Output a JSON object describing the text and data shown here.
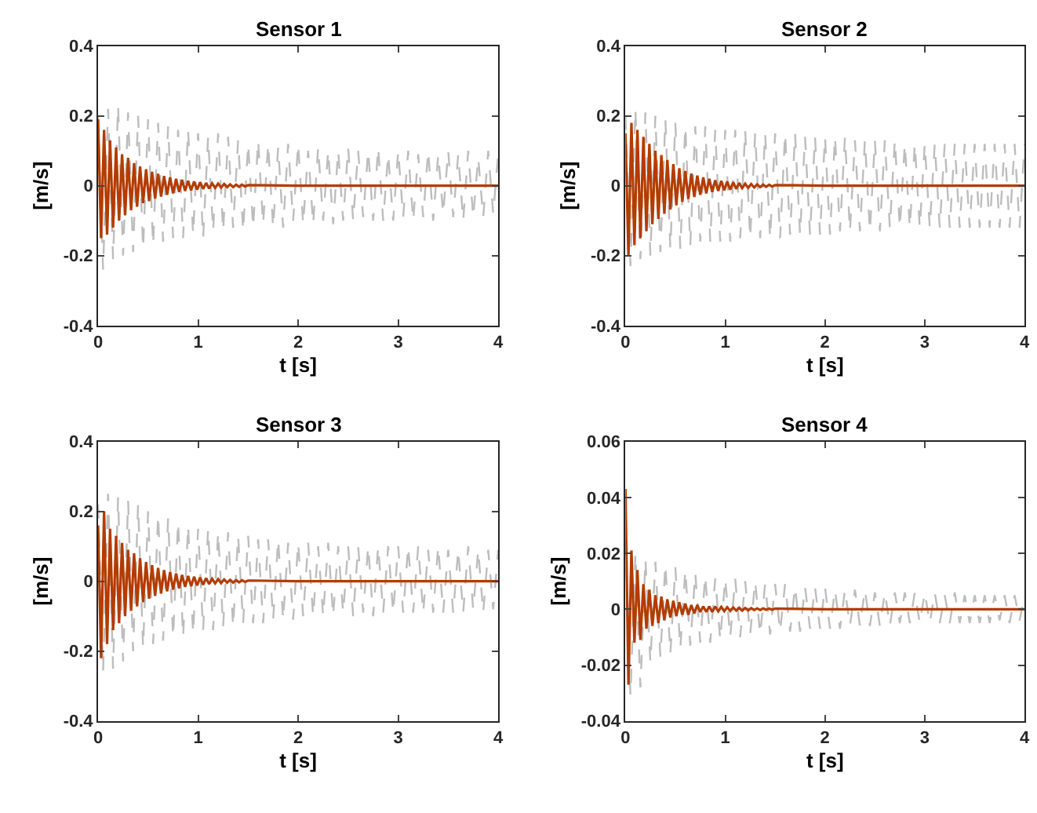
{
  "chart_data": [
    {
      "type": "line",
      "title": "Sensor 1",
      "xlabel": "t [s]",
      "ylabel": "[m/s]",
      "xlim": [
        0,
        4
      ],
      "xticks": [
        0,
        1,
        2,
        3,
        4
      ],
      "ylim": [
        -0.4,
        0.4
      ],
      "yticks": [
        -0.4,
        -0.2,
        0,
        0.2,
        0.4
      ],
      "x": [
        0,
        0.05,
        0.1,
        0.15,
        0.2,
        0.25,
        0.3,
        0.35,
        0.4,
        0.45,
        0.5,
        0.55,
        0.6,
        0.65,
        0.7,
        0.75,
        0.8,
        0.85,
        0.9,
        0.95,
        1,
        1.05,
        1.1,
        1.15,
        1.2,
        1.25,
        1.3,
        1.35,
        1.4,
        1.45,
        1.5,
        1.55,
        1.6,
        1.65,
        1.7,
        1.75,
        1.8,
        1.85,
        1.9,
        1.95,
        2,
        2.05,
        2.1,
        2.15,
        2.2,
        2.25,
        2.3,
        2.35,
        2.4,
        2.45,
        2.5,
        2.55,
        2.6,
        2.65,
        2.7,
        2.75,
        2.8,
        2.85,
        2.9,
        2.95,
        3,
        3.05,
        3.1,
        3.15,
        3.2,
        3.25,
        3.3,
        3.35,
        3.4,
        3.45,
        3.5,
        3.55,
        3.6,
        3.65,
        3.7,
        3.75,
        3.8,
        3.85,
        3.9,
        3.95,
        4
      ],
      "series": [
        {
          "color": "#bdbdbd",
          "line_style": "dashed",
          "values": [
            0.2,
            -0.24,
            0.22,
            -0.21,
            0.23,
            -0.2,
            0.21,
            -0.19,
            0.2,
            -0.18,
            0.19,
            -0.17,
            0.18,
            -0.16,
            0.17,
            -0.15,
            0.16,
            -0.15,
            0.16,
            -0.14,
            0.15,
            -0.15,
            0.14,
            -0.13,
            0.15,
            -0.13,
            0.14,
            -0.12,
            0.13,
            -0.13,
            0.12,
            -0.12,
            0.13,
            -0.11,
            0.12,
            -0.12,
            0.11,
            -0.12,
            0.12,
            -0.1,
            0.12,
            -0.11,
            0.1,
            -0.11,
            0.11,
            -0.1,
            0.1,
            -0.11,
            0.1,
            -0.1,
            0.11,
            -0.1,
            0.1,
            -0.09,
            0.1,
            -0.1,
            0.11,
            -0.1,
            0.09,
            -0.1,
            0.1,
            -0.09,
            0.1,
            -0.1,
            0.09,
            -0.09,
            0.1,
            -0.1,
            0.09,
            -0.08,
            0.1,
            -0.09,
            0.09,
            -0.1,
            0.1,
            -0.09,
            0.08,
            -0.09,
            0.1,
            -0.08,
            0.09
          ]
        },
        {
          "color": "#b33c00",
          "line_style": "solid",
          "x": [
            0,
            0.03,
            0.06,
            0.09,
            0.12,
            0.15,
            0.18,
            0.21,
            0.24,
            0.27,
            0.3,
            0.33,
            0.36,
            0.39,
            0.42,
            0.45,
            0.48,
            0.51,
            0.54,
            0.57,
            0.6,
            0.63,
            0.66,
            0.69,
            0.72,
            0.75,
            0.78,
            0.81,
            0.84,
            0.87,
            0.9,
            0.93,
            0.96,
            0.99,
            1.02,
            1.05,
            1.08,
            1.11,
            1.14,
            1.17,
            1.2,
            1.23,
            1.26,
            1.29,
            1.32,
            1.35,
            1.38,
            1.41,
            1.44,
            1.47,
            1.5,
            2,
            4
          ],
          "values": [
            0.19,
            -0.15,
            0.16,
            -0.14,
            0.13,
            -0.12,
            0.11,
            -0.1,
            0.09,
            -0.085,
            0.08,
            -0.07,
            0.065,
            -0.06,
            0.055,
            -0.05,
            0.047,
            -0.044,
            0.04,
            -0.037,
            0.034,
            -0.031,
            0.028,
            -0.026,
            0.024,
            -0.022,
            0.02,
            -0.018,
            0.017,
            -0.015,
            0.014,
            -0.013,
            0.012,
            -0.011,
            0.01,
            -0.009,
            0.008,
            -0.008,
            0.007,
            -0.006,
            0.006,
            -0.005,
            0.005,
            -0.004,
            0.004,
            -0.004,
            0.003,
            -0.003,
            0.003,
            -0.002,
            0.002,
            0,
            0
          ]
        }
      ]
    },
    {
      "type": "line",
      "title": "Sensor 2",
      "xlabel": "t [s]",
      "ylabel": "[m/s]",
      "xlim": [
        0,
        4
      ],
      "xticks": [
        0,
        1,
        2,
        3,
        4
      ],
      "ylim": [
        -0.4,
        0.4
      ],
      "yticks": [
        -0.4,
        -0.2,
        0,
        0.2,
        0.4
      ],
      "x": [
        0,
        0.05,
        0.1,
        0.15,
        0.2,
        0.25,
        0.3,
        0.35,
        0.4,
        0.45,
        0.5,
        0.55,
        0.6,
        0.65,
        0.7,
        0.75,
        0.8,
        0.85,
        0.9,
        0.95,
        1,
        1.05,
        1.1,
        1.15,
        1.2,
        1.25,
        1.3,
        1.35,
        1.4,
        1.45,
        1.5,
        1.55,
        1.6,
        1.65,
        1.7,
        1.75,
        1.8,
        1.85,
        1.9,
        1.95,
        2,
        2.05,
        2.1,
        2.15,
        2.2,
        2.25,
        2.3,
        2.35,
        2.4,
        2.45,
        2.5,
        2.55,
        2.6,
        2.65,
        2.7,
        2.75,
        2.8,
        2.85,
        2.9,
        2.95,
        3,
        3.05,
        3.1,
        3.15,
        3.2,
        3.25,
        3.3,
        3.35,
        3.4,
        3.45,
        3.5,
        3.55,
        3.6,
        3.65,
        3.7,
        3.75,
        3.8,
        3.85,
        3.9,
        3.95,
        4
      ],
      "series": [
        {
          "color": "#bdbdbd",
          "line_style": "dashed",
          "values": [
            0.2,
            -0.23,
            0.22,
            -0.21,
            0.21,
            -0.2,
            0.2,
            -0.19,
            0.19,
            -0.18,
            0.18,
            -0.18,
            0.17,
            -0.17,
            0.17,
            -0.16,
            0.17,
            -0.16,
            0.16,
            -0.16,
            0.16,
            -0.16,
            0.16,
            -0.15,
            0.16,
            -0.15,
            0.15,
            -0.15,
            0.15,
            -0.15,
            0.15,
            -0.15,
            0.15,
            -0.14,
            0.15,
            -0.14,
            0.14,
            -0.14,
            0.14,
            -0.14,
            0.14,
            -0.14,
            0.14,
            -0.13,
            0.14,
            -0.13,
            0.13,
            -0.13,
            0.13,
            -0.13,
            0.13,
            -0.13,
            0.13,
            -0.12,
            0.13,
            -0.12,
            0.12,
            -0.12,
            0.12,
            -0.12,
            0.12,
            -0.12,
            0.12,
            -0.12,
            0.12,
            -0.12,
            0.12,
            -0.12,
            0.12,
            -0.12,
            0.12,
            -0.12,
            0.12,
            -0.12,
            0.12,
            -0.12,
            0.12,
            -0.12,
            0.12,
            -0.12,
            0.12
          ]
        },
        {
          "color": "#b33c00",
          "line_style": "solid",
          "x": [
            0,
            0.03,
            0.06,
            0.09,
            0.12,
            0.15,
            0.18,
            0.21,
            0.24,
            0.27,
            0.3,
            0.33,
            0.36,
            0.39,
            0.42,
            0.45,
            0.48,
            0.51,
            0.54,
            0.57,
            0.6,
            0.63,
            0.66,
            0.69,
            0.72,
            0.75,
            0.78,
            0.81,
            0.84,
            0.87,
            0.9,
            0.93,
            0.96,
            0.99,
            1.02,
            1.05,
            1.08,
            1.11,
            1.14,
            1.17,
            1.2,
            1.23,
            1.26,
            1.29,
            1.32,
            1.35,
            1.38,
            1.41,
            1.44,
            1.47,
            1.5,
            2,
            4
          ],
          "values": [
            0.15,
            -0.2,
            0.18,
            -0.17,
            0.16,
            -0.15,
            0.14,
            -0.13,
            0.12,
            -0.11,
            0.1,
            -0.095,
            0.088,
            -0.08,
            0.074,
            -0.068,
            0.062,
            -0.056,
            0.05,
            -0.046,
            0.042,
            -0.038,
            0.035,
            -0.032,
            0.029,
            -0.026,
            0.024,
            -0.022,
            0.02,
            -0.018,
            0.016,
            -0.015,
            0.014,
            -0.013,
            0.012,
            -0.011,
            0.01,
            -0.009,
            0.008,
            -0.007,
            0.006,
            -0.006,
            0.005,
            -0.005,
            0.004,
            -0.004,
            0.003,
            -0.003,
            0.003,
            -0.002,
            0.002,
            0,
            0
          ]
        }
      ]
    },
    {
      "type": "line",
      "title": "Sensor 3",
      "xlabel": "t [s]",
      "ylabel": "[m/s]",
      "xlim": [
        0,
        4
      ],
      "xticks": [
        0,
        1,
        2,
        3,
        4
      ],
      "ylim": [
        -0.4,
        0.4
      ],
      "yticks": [
        -0.4,
        -0.2,
        0,
        0.2,
        0.4
      ],
      "x": [
        0,
        0.05,
        0.1,
        0.15,
        0.2,
        0.25,
        0.3,
        0.35,
        0.4,
        0.45,
        0.5,
        0.55,
        0.6,
        0.65,
        0.7,
        0.75,
        0.8,
        0.85,
        0.9,
        0.95,
        1,
        1.05,
        1.1,
        1.15,
        1.2,
        1.25,
        1.3,
        1.35,
        1.4,
        1.45,
        1.5,
        1.55,
        1.6,
        1.65,
        1.7,
        1.75,
        1.8,
        1.85,
        1.9,
        1.95,
        2,
        2.05,
        2.1,
        2.15,
        2.2,
        2.25,
        2.3,
        2.35,
        2.4,
        2.45,
        2.5,
        2.55,
        2.6,
        2.65,
        2.7,
        2.75,
        2.8,
        2.85,
        2.9,
        2.95,
        3,
        3.05,
        3.1,
        3.15,
        3.2,
        3.25,
        3.3,
        3.35,
        3.4,
        3.45,
        3.5,
        3.55,
        3.6,
        3.65,
        3.7,
        3.75,
        3.8,
        3.85,
        3.9,
        3.95,
        4
      ],
      "series": [
        {
          "color": "#bdbdbd",
          "line_style": "dashed",
          "values": [
            0.22,
            -0.26,
            0.25,
            -0.25,
            0.24,
            -0.23,
            0.23,
            -0.2,
            0.22,
            -0.19,
            0.2,
            -0.18,
            0.19,
            -0.17,
            0.18,
            -0.16,
            0.17,
            -0.16,
            0.16,
            -0.15,
            0.15,
            -0.14,
            0.15,
            -0.14,
            0.14,
            -0.13,
            0.14,
            -0.13,
            0.13,
            -0.12,
            0.13,
            -0.12,
            0.12,
            -0.12,
            0.12,
            -0.11,
            0.12,
            -0.11,
            0.11,
            -0.11,
            0.11,
            -0.1,
            0.11,
            -0.1,
            0.1,
            -0.1,
            0.11,
            -0.1,
            0.1,
            -0.09,
            0.1,
            -0.1,
            0.1,
            -0.09,
            0.1,
            -0.1,
            0.1,
            -0.09,
            0.1,
            -0.09,
            0.1,
            -0.09,
            0.1,
            -0.09,
            0.1,
            -0.09,
            0.09,
            -0.09,
            0.1,
            -0.09,
            0.09,
            -0.09,
            0.09,
            -0.09,
            0.1,
            -0.08,
            0.09,
            -0.09,
            0.09,
            -0.08,
            0.09
          ]
        },
        {
          "color": "#b33c00",
          "line_style": "solid",
          "x": [
            0,
            0.03,
            0.06,
            0.09,
            0.12,
            0.15,
            0.18,
            0.21,
            0.24,
            0.27,
            0.3,
            0.33,
            0.36,
            0.39,
            0.42,
            0.45,
            0.48,
            0.51,
            0.54,
            0.57,
            0.6,
            0.63,
            0.66,
            0.69,
            0.72,
            0.75,
            0.78,
            0.81,
            0.84,
            0.87,
            0.9,
            0.93,
            0.96,
            0.99,
            1.02,
            1.05,
            1.08,
            1.11,
            1.14,
            1.17,
            1.2,
            1.23,
            1.26,
            1.29,
            1.32,
            1.35,
            1.38,
            1.41,
            1.44,
            1.47,
            1.5,
            2,
            4
          ],
          "values": [
            0.16,
            -0.22,
            0.2,
            -0.18,
            0.15,
            -0.14,
            0.13,
            -0.12,
            0.11,
            -0.1,
            0.09,
            -0.085,
            0.08,
            -0.072,
            0.066,
            -0.06,
            0.055,
            -0.05,
            0.046,
            -0.042,
            0.038,
            -0.035,
            0.032,
            -0.029,
            0.026,
            -0.024,
            0.022,
            -0.02,
            0.018,
            -0.016,
            0.015,
            -0.014,
            0.013,
            -0.012,
            0.011,
            -0.01,
            0.009,
            -0.008,
            0.007,
            -0.006,
            0.006,
            -0.005,
            0.005,
            -0.004,
            0.004,
            -0.004,
            0.003,
            -0.003,
            0.003,
            -0.002,
            0.002,
            0,
            0
          ]
        }
      ]
    },
    {
      "type": "line",
      "title": "Sensor 4",
      "xlabel": "t [s]",
      "ylabel": "[m/s]",
      "xlim": [
        0,
        4
      ],
      "xticks": [
        0,
        1,
        2,
        3,
        4
      ],
      "ylim": [
        -0.04,
        0.06
      ],
      "yticks": [
        -0.04,
        -0.02,
        0,
        0.02,
        0.04,
        0.06
      ],
      "x": [
        0,
        0.05,
        0.1,
        0.15,
        0.2,
        0.25,
        0.3,
        0.35,
        0.4,
        0.45,
        0.5,
        0.55,
        0.6,
        0.65,
        0.7,
        0.75,
        0.8,
        0.85,
        0.9,
        0.95,
        1,
        1.05,
        1.1,
        1.15,
        1.2,
        1.25,
        1.3,
        1.35,
        1.4,
        1.45,
        1.5,
        1.55,
        1.6,
        1.65,
        1.7,
        1.75,
        1.8,
        1.85,
        1.9,
        1.95,
        2,
        2.05,
        2.1,
        2.15,
        2.2,
        2.25,
        2.3,
        2.35,
        2.4,
        2.45,
        2.5,
        2.55,
        2.6,
        2.65,
        2.7,
        2.75,
        2.8,
        2.85,
        2.9,
        2.95,
        3,
        3.05,
        3.1,
        3.15,
        3.2,
        3.25,
        3.3,
        3.35,
        3.4,
        3.45,
        3.5,
        3.55,
        3.6,
        3.65,
        3.7,
        3.75,
        3.8,
        3.85,
        3.9,
        3.95,
        4
      ],
      "series": [
        {
          "color": "#bdbdbd",
          "line_style": "dashed",
          "values": [
            0.025,
            -0.031,
            0.02,
            -0.028,
            0.018,
            -0.019,
            0.017,
            -0.017,
            0.016,
            -0.016,
            0.015,
            -0.014,
            0.014,
            -0.013,
            0.013,
            -0.012,
            0.012,
            -0.012,
            0.011,
            -0.011,
            0.011,
            -0.01,
            0.011,
            -0.01,
            0.01,
            -0.009,
            0.01,
            -0.009,
            0.009,
            -0.009,
            0.009,
            -0.008,
            0.009,
            -0.008,
            0.008,
            -0.008,
            0.008,
            -0.007,
            0.008,
            -0.007,
            0.008,
            -0.007,
            0.007,
            -0.007,
            0.007,
            -0.006,
            0.007,
            -0.006,
            0.007,
            -0.006,
            0.006,
            -0.006,
            0.006,
            -0.006,
            0.006,
            -0.005,
            0.006,
            -0.005,
            0.006,
            -0.005,
            0.006,
            -0.005,
            0.006,
            -0.005,
            0.005,
            -0.005,
            0.006,
            -0.005,
            0.005,
            -0.005,
            0.005,
            -0.005,
            0.005,
            -0.005,
            0.005,
            -0.004,
            0.005,
            -0.005,
            0.005,
            -0.004,
            0.005
          ]
        },
        {
          "color": "#b33c00",
          "line_style": "solid",
          "x": [
            0,
            0.03,
            0.06,
            0.09,
            0.12,
            0.15,
            0.18,
            0.21,
            0.24,
            0.27,
            0.3,
            0.33,
            0.36,
            0.39,
            0.42,
            0.45,
            0.48,
            0.51,
            0.54,
            0.57,
            0.6,
            0.63,
            0.66,
            0.69,
            0.72,
            0.75,
            0.78,
            0.81,
            0.84,
            0.87,
            0.9,
            0.93,
            0.96,
            0.99,
            1.02,
            1.05,
            1.08,
            1.11,
            1.14,
            1.17,
            1.2,
            1.23,
            1.26,
            1.29,
            1.32,
            1.35,
            1.38,
            1.41,
            1.44,
            1.47,
            1.5,
            2,
            4
          ],
          "values": [
            0.043,
            -0.027,
            0.021,
            -0.012,
            0.014,
            -0.011,
            0.009,
            -0.007,
            0.007,
            -0.006,
            0.005,
            -0.005,
            0.0045,
            -0.004,
            0.0035,
            -0.003,
            0.003,
            -0.0025,
            0.0025,
            -0.002,
            0.002,
            -0.002,
            0.0015,
            -0.0015,
            0.0015,
            -0.001,
            0.001,
            -0.001,
            0.001,
            -0.001,
            0.001,
            -0.0008,
            0.0008,
            -0.0007,
            0.0007,
            -0.0006,
            0.0006,
            -0.0005,
            0.0005,
            -0.0005,
            0.0004,
            -0.0004,
            0.0004,
            -0.0003,
            0.0003,
            -0.0003,
            0.0003,
            -0.0002,
            0.0002,
            -0.0002,
            0.0002,
            0,
            0
          ]
        }
      ]
    }
  ]
}
